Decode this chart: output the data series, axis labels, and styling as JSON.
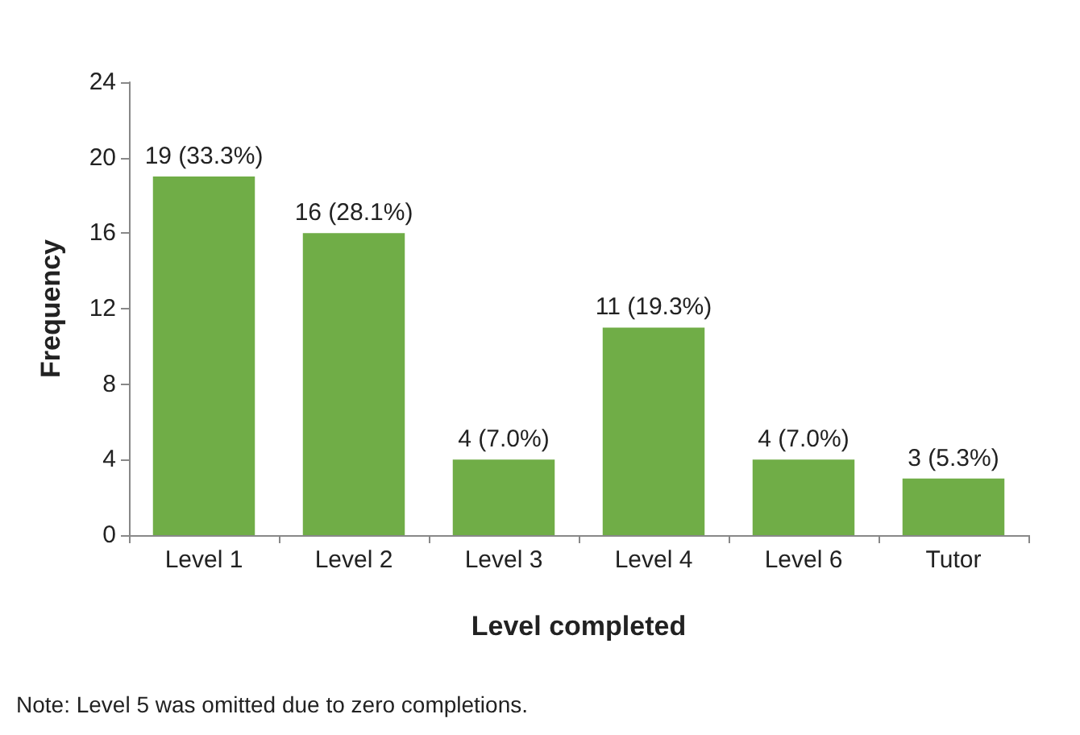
{
  "chart_data": {
    "type": "bar",
    "xlabel": "Level completed",
    "ylabel": "Frequency",
    "categories": [
      "Level 1",
      "Level 2",
      "Level 3",
      "Level 4",
      "Level 6",
      "Tutor"
    ],
    "values": [
      19,
      16,
      4,
      11,
      4,
      3
    ],
    "value_labels": [
      "19 (33.3%)",
      "16 (28.1%)",
      "4 (7.0%)",
      "11 (19.3%)",
      "4 (7.0%)",
      "3 (5.3%)"
    ],
    "color": "#70ad47",
    "ylim": [
      0,
      24
    ],
    "yticks": [
      0,
      4,
      8,
      12,
      16,
      20,
      24
    ],
    "grid": false,
    "annotations": [
      "Note: Level 5 was omitted due to zero completions."
    ]
  }
}
